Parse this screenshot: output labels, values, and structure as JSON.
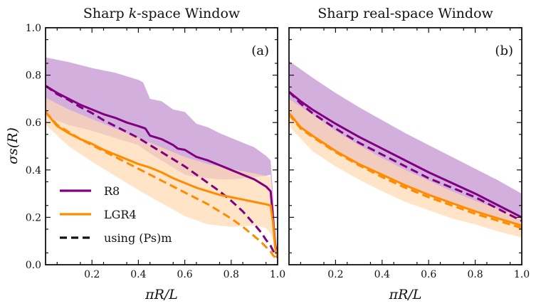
{
  "chart_data": [
    {
      "type": "line",
      "panel_label": "(a)",
      "title_pre": "Sharp ",
      "title_var": "k",
      "title_post": "-space Window",
      "xlabel": "πR/L",
      "ylabel": "σs(R)",
      "xlim": [
        0.0,
        1.0
      ],
      "ylim": [
        0.0,
        1.0
      ],
      "xticks": [
        0.2,
        0.4,
        0.6,
        0.8,
        1.0
      ],
      "xtick_labels": [
        "0.2",
        "0.4",
        "0.6",
        "0.8",
        "1.0"
      ],
      "yticks": [
        0.0,
        0.2,
        0.4,
        0.6,
        0.8,
        1.0
      ],
      "ytick_labels": [
        "0.0",
        "0.2",
        "0.4",
        "0.6",
        "0.8",
        "1.0"
      ],
      "series": [
        {
          "name": "R8",
          "style": "solid",
          "color": "#800080",
          "x": [
            0.0,
            0.05,
            0.1,
            0.15,
            0.2,
            0.25,
            0.3,
            0.35,
            0.4,
            0.43,
            0.45,
            0.5,
            0.55,
            0.57,
            0.6,
            0.65,
            0.7,
            0.75,
            0.8,
            0.85,
            0.9,
            0.95,
            0.97,
            0.98,
            0.99,
            1.0
          ],
          "y": [
            0.755,
            0.725,
            0.7,
            0.675,
            0.655,
            0.635,
            0.62,
            0.6,
            0.585,
            0.575,
            0.545,
            0.53,
            0.505,
            0.49,
            0.485,
            0.455,
            0.44,
            0.42,
            0.4,
            0.38,
            0.36,
            0.33,
            0.31,
            0.2,
            0.08,
            0.04
          ]
        },
        {
          "name": "R8 using (Ps)m",
          "style": "dashed",
          "color": "#800080",
          "x": [
            0.0,
            0.05,
            0.1,
            0.15,
            0.2,
            0.25,
            0.3,
            0.35,
            0.4,
            0.45,
            0.5,
            0.55,
            0.6,
            0.65,
            0.7,
            0.75,
            0.8,
            0.85,
            0.9,
            0.93,
            0.95,
            0.97,
            0.98,
            0.99,
            1.0
          ],
          "y": [
            0.755,
            0.72,
            0.695,
            0.665,
            0.64,
            0.61,
            0.585,
            0.56,
            0.535,
            0.505,
            0.475,
            0.445,
            0.415,
            0.38,
            0.345,
            0.31,
            0.27,
            0.225,
            0.17,
            0.135,
            0.105,
            0.08,
            0.06,
            0.045,
            0.03
          ]
        },
        {
          "name": "LGR4",
          "style": "solid",
          "color": "#ff8c00",
          "x": [
            0.0,
            0.05,
            0.1,
            0.15,
            0.2,
            0.25,
            0.3,
            0.35,
            0.4,
            0.45,
            0.5,
            0.55,
            0.6,
            0.65,
            0.7,
            0.75,
            0.8,
            0.85,
            0.9,
            0.95,
            0.97,
            0.98,
            0.99,
            1.0
          ],
          "y": [
            0.645,
            0.585,
            0.555,
            0.53,
            0.51,
            0.485,
            0.465,
            0.445,
            0.425,
            0.41,
            0.39,
            0.365,
            0.345,
            0.325,
            0.31,
            0.295,
            0.285,
            0.275,
            0.265,
            0.255,
            0.25,
            0.18,
            0.07,
            0.03
          ]
        },
        {
          "name": "LGR4 using (Ps)m",
          "style": "dashed",
          "color": "#ff8c00",
          "x": [
            0.0,
            0.05,
            0.1,
            0.15,
            0.2,
            0.25,
            0.3,
            0.35,
            0.4,
            0.45,
            0.5,
            0.55,
            0.6,
            0.65,
            0.7,
            0.75,
            0.8,
            0.85,
            0.9,
            0.93,
            0.95,
            0.97,
            0.98,
            0.99,
            1.0
          ],
          "y": [
            0.645,
            0.59,
            0.56,
            0.53,
            0.505,
            0.48,
            0.455,
            0.43,
            0.405,
            0.38,
            0.355,
            0.33,
            0.305,
            0.28,
            0.255,
            0.225,
            0.195,
            0.16,
            0.12,
            0.095,
            0.075,
            0.055,
            0.04,
            0.03,
            0.02
          ]
        }
      ],
      "bands": [
        {
          "name": "R8 spread",
          "color": "#c89bd4",
          "x": [
            0.0,
            0.1,
            0.2,
            0.3,
            0.4,
            0.42,
            0.45,
            0.5,
            0.55,
            0.6,
            0.65,
            0.7,
            0.75,
            0.8,
            0.85,
            0.9,
            0.95,
            0.97,
            0.98,
            0.99,
            1.0
          ],
          "upper": [
            0.875,
            0.855,
            0.83,
            0.81,
            0.78,
            0.77,
            0.7,
            0.69,
            0.655,
            0.645,
            0.595,
            0.58,
            0.555,
            0.535,
            0.515,
            0.495,
            0.46,
            0.44,
            0.3,
            0.12,
            0.06
          ],
          "lower": [
            0.625,
            0.59,
            0.565,
            0.535,
            0.505,
            0.49,
            0.47,
            0.44,
            0.41,
            0.38,
            0.37,
            0.365,
            0.36,
            0.36,
            0.365,
            0.37,
            0.375,
            0.38,
            0.25,
            0.08,
            0.02
          ]
        },
        {
          "name": "LGR4 spread",
          "color": "#ffd9b0",
          "x": [
            0.0,
            0.1,
            0.2,
            0.3,
            0.4,
            0.5,
            0.6,
            0.7,
            0.8,
            0.9,
            0.95,
            0.97,
            0.98,
            0.99,
            1.0
          ],
          "upper": [
            0.705,
            0.655,
            0.615,
            0.575,
            0.535,
            0.495,
            0.455,
            0.425,
            0.405,
            0.385,
            0.375,
            0.37,
            0.25,
            0.1,
            0.04
          ],
          "lower": [
            0.59,
            0.5,
            0.435,
            0.375,
            0.315,
            0.26,
            0.205,
            0.17,
            0.16,
            0.165,
            0.155,
            0.13,
            0.1,
            0.06,
            0.02
          ]
        }
      ]
    },
    {
      "type": "line",
      "panel_label": "(b)",
      "title_pre": "Sharp real-space Window",
      "title_var": "",
      "title_post": "",
      "xlabel": "πR/L",
      "xlim": [
        0.0,
        1.0
      ],
      "ylim": [
        0.0,
        1.0
      ],
      "xticks": [
        0.2,
        0.4,
        0.6,
        0.8,
        1.0
      ],
      "xtick_labels": [
        "0.2",
        "0.4",
        "0.6",
        "0.8",
        "1.0"
      ],
      "yticks": [
        0.0,
        0.2,
        0.4,
        0.6,
        0.8,
        1.0
      ],
      "series": [
        {
          "name": "R8",
          "style": "solid",
          "color": "#800080",
          "x": [
            0.0,
            0.05,
            0.1,
            0.2,
            0.3,
            0.4,
            0.5,
            0.6,
            0.7,
            0.8,
            0.9,
            1.0
          ],
          "y": [
            0.73,
            0.69,
            0.655,
            0.595,
            0.54,
            0.49,
            0.44,
            0.39,
            0.345,
            0.3,
            0.25,
            0.2
          ]
        },
        {
          "name": "R8 using (Ps)m",
          "style": "dashed",
          "color": "#800080",
          "x": [
            0.0,
            0.05,
            0.1,
            0.2,
            0.3,
            0.4,
            0.5,
            0.6,
            0.7,
            0.8,
            0.9,
            1.0
          ],
          "y": [
            0.73,
            0.68,
            0.64,
            0.575,
            0.515,
            0.465,
            0.415,
            0.365,
            0.325,
            0.285,
            0.235,
            0.185
          ]
        },
        {
          "name": "LGR4",
          "style": "solid",
          "color": "#ff8c00",
          "x": [
            0.0,
            0.05,
            0.1,
            0.2,
            0.3,
            0.4,
            0.5,
            0.6,
            0.7,
            0.8,
            0.9,
            1.0
          ],
          "y": [
            0.64,
            0.58,
            0.545,
            0.48,
            0.425,
            0.38,
            0.335,
            0.295,
            0.26,
            0.225,
            0.195,
            0.165
          ]
        },
        {
          "name": "LGR4 using (Ps)m",
          "style": "dashed",
          "color": "#ff8c00",
          "x": [
            0.0,
            0.05,
            0.1,
            0.2,
            0.3,
            0.4,
            0.5,
            0.6,
            0.7,
            0.8,
            0.9,
            1.0
          ],
          "y": [
            0.635,
            0.575,
            0.54,
            0.475,
            0.42,
            0.37,
            0.325,
            0.285,
            0.25,
            0.215,
            0.185,
            0.155
          ]
        }
      ],
      "bands": [
        {
          "name": "R8 spread",
          "color": "#c89bd4",
          "x": [
            0.0,
            0.1,
            0.2,
            0.3,
            0.4,
            0.5,
            0.6,
            0.7,
            0.8,
            0.9,
            1.0
          ],
          "upper": [
            0.86,
            0.79,
            0.725,
            0.665,
            0.61,
            0.555,
            0.505,
            0.455,
            0.405,
            0.355,
            0.3
          ],
          "lower": [
            0.62,
            0.545,
            0.485,
            0.43,
            0.38,
            0.335,
            0.295,
            0.26,
            0.225,
            0.195,
            0.165
          ]
        },
        {
          "name": "LGR4 spread",
          "color": "#ffd9b0",
          "x": [
            0.0,
            0.1,
            0.2,
            0.3,
            0.4,
            0.5,
            0.6,
            0.7,
            0.8,
            0.9,
            1.0
          ],
          "upper": [
            0.7,
            0.635,
            0.565,
            0.505,
            0.45,
            0.4,
            0.355,
            0.31,
            0.27,
            0.235,
            0.205
          ],
          "lower": [
            0.585,
            0.48,
            0.415,
            0.36,
            0.31,
            0.265,
            0.23,
            0.195,
            0.17,
            0.14,
            0.115
          ]
        }
      ]
    }
  ],
  "legend": {
    "items": [
      {
        "label": "R8",
        "style": "solid",
        "color": "#800080"
      },
      {
        "label": "LGR4",
        "style": "solid",
        "color": "#ff8c00"
      },
      {
        "label": "using (Ps)m",
        "style": "dashed",
        "color": "#111111"
      }
    ],
    "placement": "lower-left of panel (a)"
  }
}
